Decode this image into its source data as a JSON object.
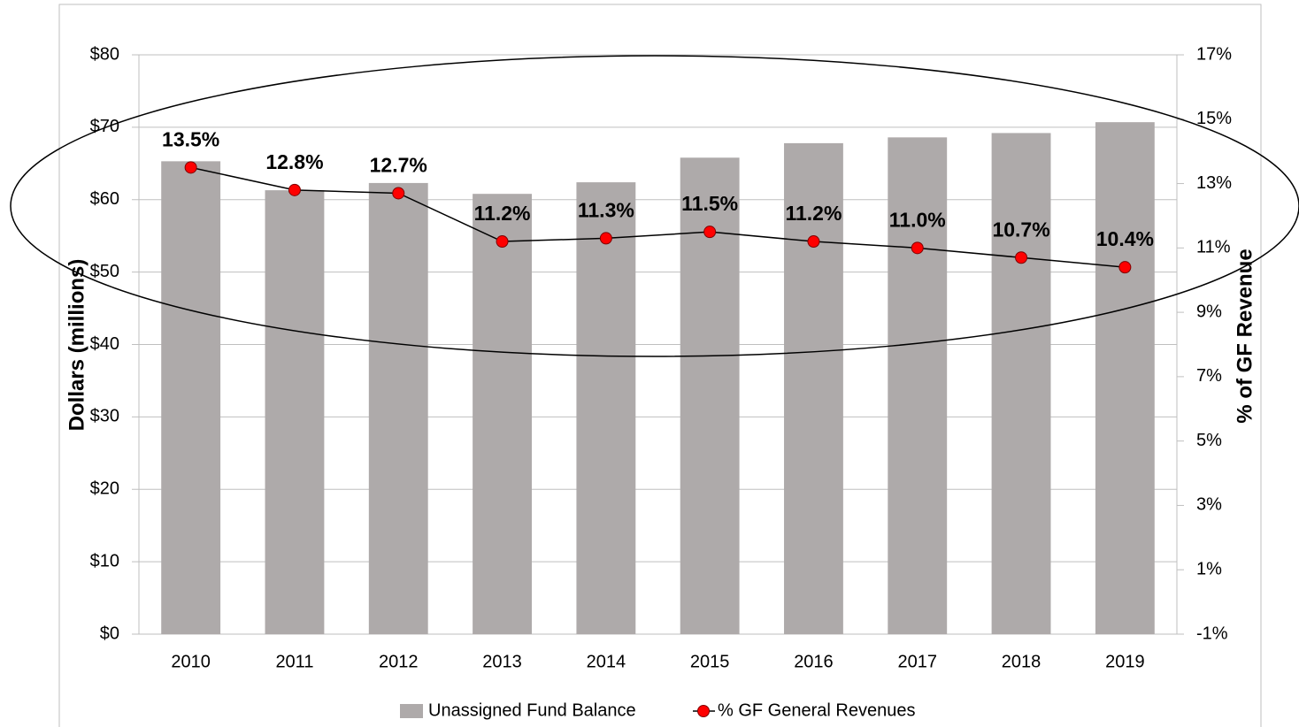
{
  "chart_data": {
    "type": "bar_line",
    "categories": [
      "2010",
      "2011",
      "2012",
      "2013",
      "2014",
      "2015",
      "2016",
      "2017",
      "2018",
      "2019"
    ],
    "series": [
      {
        "name": "Unassigned Fund Balance",
        "type": "bar",
        "axis": "y",
        "color": "#aeaaaa",
        "values": [
          65.3,
          61.3,
          62.3,
          60.8,
          62.4,
          65.8,
          67.8,
          68.6,
          69.2,
          70.7
        ]
      },
      {
        "name": "% GF General Revenues",
        "type": "line",
        "axis": "y2",
        "color": "#ff0000",
        "values": [
          13.5,
          12.8,
          12.7,
          11.2,
          11.3,
          11.5,
          11.2,
          11.0,
          10.7,
          10.4
        ],
        "value_labels": [
          "13.5%",
          "12.8%",
          "12.7%",
          "11.2%",
          "11.3%",
          "11.5%",
          "11.2%",
          "11.0%",
          "10.7%",
          "10.4%"
        ]
      }
    ],
    "ylabel": "Dollars (millions)",
    "y2label": "% of GF Revenue",
    "ylim": [
      0,
      80
    ],
    "yticks": [
      {
        "value": 0,
        "label": "$0"
      },
      {
        "value": 10,
        "label": "$10"
      },
      {
        "value": 20,
        "label": "$20"
      },
      {
        "value": 30,
        "label": "$30"
      },
      {
        "value": 40,
        "label": "$40"
      },
      {
        "value": 50,
        "label": "$50"
      },
      {
        "value": 60,
        "label": "$60"
      },
      {
        "value": 70,
        "label": "$70"
      },
      {
        "value": 80,
        "label": "$80"
      }
    ],
    "y2lim": [
      -1,
      17
    ],
    "y2ticks": [
      {
        "value": -1,
        "label": "-1%"
      },
      {
        "value": 1,
        "label": "1%"
      },
      {
        "value": 3,
        "label": "3%"
      },
      {
        "value": 5,
        "label": "5%"
      },
      {
        "value": 7,
        "label": "7%"
      },
      {
        "value": 9,
        "label": "9%"
      },
      {
        "value": 11,
        "label": "11%"
      },
      {
        "value": 13,
        "label": "13%"
      },
      {
        "value": 15,
        "label": "15%"
      },
      {
        "value": 17,
        "label": "17%"
      }
    ],
    "grid": true,
    "legend": "bottom"
  }
}
